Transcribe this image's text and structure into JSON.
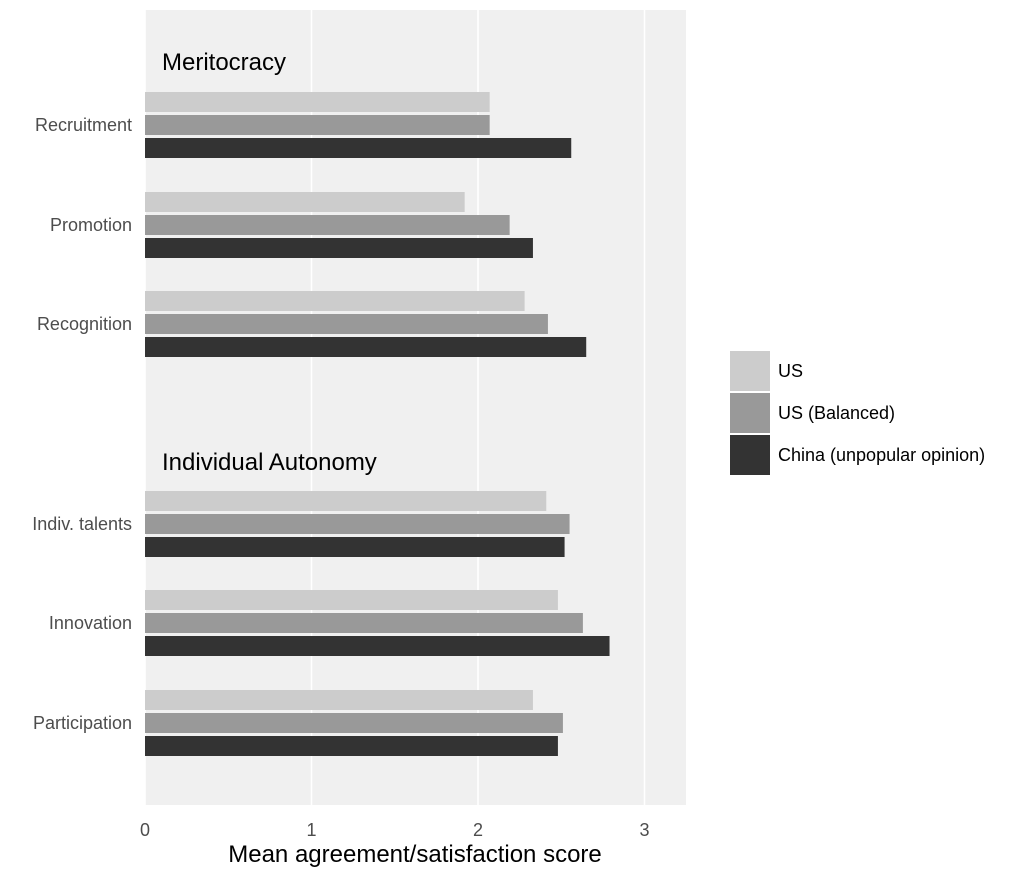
{
  "chart_data": {
    "type": "bar",
    "orientation": "horizontal",
    "xlabel": "Mean agreement/satisfaction score",
    "xlim": [
      0,
      3.25
    ],
    "xticks": [
      0,
      1,
      2,
      3
    ],
    "grid": true,
    "legend_position": "right",
    "groups": [
      {
        "label": "Meritocracy",
        "categories": [
          "Recruitment",
          "Promotion",
          "Recognition"
        ]
      },
      {
        "label": "Individual Autonomy",
        "categories": [
          "Indiv. talents",
          "Innovation",
          "Participation"
        ]
      }
    ],
    "categories": [
      "Recruitment",
      "Promotion",
      "Recognition",
      "Indiv. talents",
      "Innovation",
      "Participation"
    ],
    "series": [
      {
        "name": "US",
        "color": "#cccccc",
        "values": [
          2.07,
          1.92,
          2.28,
          2.41,
          2.48,
          2.33
        ]
      },
      {
        "name": "US (Balanced)",
        "color": "#999999",
        "values": [
          2.07,
          2.19,
          2.42,
          2.55,
          2.63,
          2.51
        ]
      },
      {
        "name": "China (unpopular opinion)",
        "color": "#333333",
        "values": [
          2.56,
          2.33,
          2.65,
          2.52,
          2.79,
          2.48
        ]
      }
    ]
  }
}
